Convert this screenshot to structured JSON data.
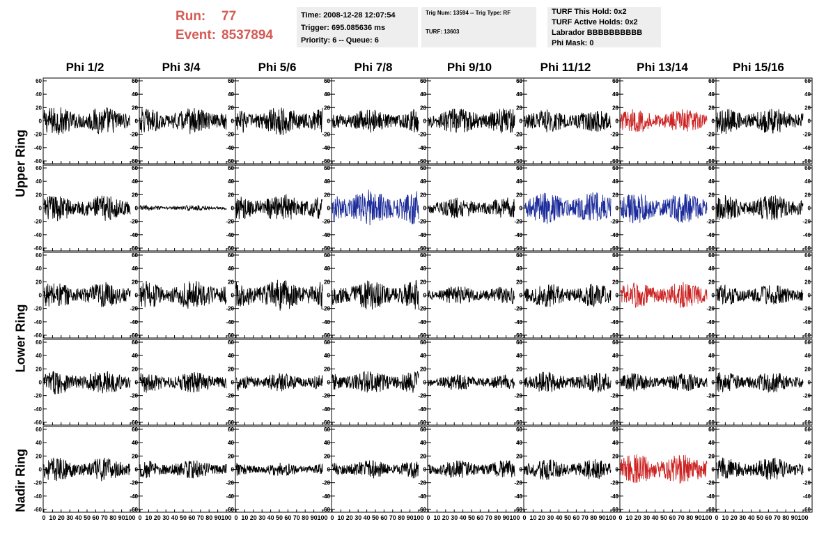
{
  "header": {
    "run_label": "Run:",
    "run_value": "77",
    "event_label": "Event:",
    "event_value": "8537894",
    "run_color": "#d55a55"
  },
  "info_time": {
    "time": "Time: 2008-12-28 12:07:54",
    "trigger": "Trigger: 695.085636 ms",
    "priority": "Priority: 6 -- Queue: 6"
  },
  "info_trig": {
    "trig": "Trig Num: 13594 -- Trig Type: RF",
    "turf": "TURF: 13603"
  },
  "info_turf": {
    "this_hold": "TURF This Hold: 0x2",
    "active_holds": "TURF Active Holds: 0x2",
    "labrador": "Labrador BBBBBBBBBB",
    "phi_mask": "Phi Mask: 0"
  },
  "columns": [
    "Phi 1/2",
    "Phi 3/4",
    "Phi 5/6",
    "Phi 7/8",
    "Phi 9/10",
    "Phi 11/12",
    "Phi 13/14",
    "Phi 15/16"
  ],
  "rings": [
    "Upper Ring",
    "Lower Ring",
    "Nadir Ring"
  ],
  "chart_data": {
    "type": "line",
    "grid": false,
    "xlim": [
      0,
      100
    ],
    "ylim": [
      -60,
      60
    ],
    "y_ticks": [
      -60,
      -40,
      -20,
      0,
      20,
      40,
      60
    ],
    "x_ticks": [
      0,
      10,
      20,
      30,
      40,
      50,
      60,
      70,
      80,
      90,
      100
    ],
    "trace_colors": {
      "normal": "#000000",
      "triggered": "#cc2222",
      "l2": "#1a2a9a"
    },
    "amplitudes": [
      [
        22,
        20,
        22,
        18,
        20,
        18,
        18,
        20
      ],
      [
        20,
        4,
        22,
        28,
        16,
        24,
        24,
        20
      ],
      [
        20,
        22,
        24,
        22,
        14,
        18,
        20,
        16
      ],
      [
        18,
        16,
        14,
        18,
        12,
        16,
        14,
        16
      ],
      [
        18,
        14,
        10,
        14,
        14,
        16,
        24,
        18
      ]
    ],
    "colors": [
      [
        "normal",
        "normal",
        "normal",
        "normal",
        "normal",
        "normal",
        "triggered",
        "normal"
      ],
      [
        "normal",
        "normal",
        "normal",
        "l2",
        "normal",
        "l2",
        "l2",
        "normal"
      ],
      [
        "normal",
        "normal",
        "normal",
        "normal",
        "normal",
        "normal",
        "triggered",
        "normal"
      ],
      [
        "normal",
        "normal",
        "normal",
        "normal",
        "normal",
        "normal",
        "normal",
        "normal"
      ],
      [
        "normal",
        "normal",
        "normal",
        "normal",
        "normal",
        "normal",
        "triggered",
        "normal"
      ]
    ]
  }
}
